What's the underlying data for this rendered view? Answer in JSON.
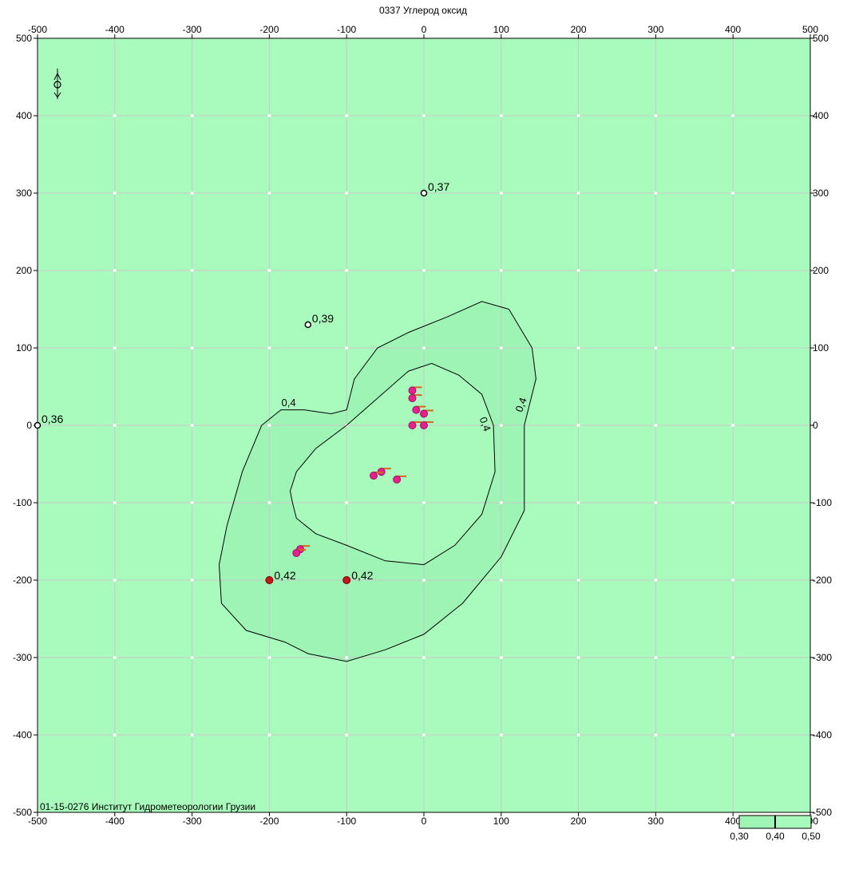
{
  "title": "0337 Углерод оксид",
  "organization": "01-15-0276 Институт Гидрометеорологии Грузии",
  "colors": {
    "background": "#a8fbbd",
    "zone_mid": "#9df4b4",
    "zone_inner": "#a7fabc",
    "grid": "#c8c8c8",
    "frame": "#000000",
    "source_point": "#e8208c",
    "source_flag": "#d06a1a",
    "max_point": "#c01818"
  },
  "axes": {
    "x_ticks": [
      "-500",
      "-400",
      "-300",
      "-200",
      "-100",
      "0",
      "100",
      "200",
      "300",
      "400",
      "500"
    ],
    "y_ticks": [
      "500",
      "400",
      "300",
      "200",
      "100",
      "0",
      "-100",
      "-200",
      "-300",
      "-400",
      "-500"
    ],
    "range": [
      -500,
      500
    ]
  },
  "isoline_label": "0,4",
  "isolines": [
    {
      "name": "outer",
      "level": 0.4,
      "points": [
        [
          -180,
          -280
        ],
        [
          -150,
          -295
        ],
        [
          -100,
          -305
        ],
        [
          -50,
          -290
        ],
        [
          0,
          -270
        ],
        [
          50,
          -230
        ],
        [
          100,
          -170
        ],
        [
          130,
          -110
        ],
        [
          130,
          0
        ],
        [
          145,
          60
        ],
        [
          140,
          100
        ],
        [
          110,
          150
        ],
        [
          75,
          160
        ],
        [
          30,
          140
        ],
        [
          -20,
          120
        ],
        [
          -60,
          100
        ],
        [
          -90,
          60
        ],
        [
          -100,
          20
        ],
        [
          -120,
          15
        ],
        [
          -155,
          20
        ],
        [
          -185,
          20
        ],
        [
          -210,
          0
        ],
        [
          -235,
          -60
        ],
        [
          -255,
          -130
        ],
        [
          -265,
          -180
        ],
        [
          -262,
          -230
        ],
        [
          -230,
          -265
        ]
      ]
    },
    {
      "name": "inner",
      "level": 0.4,
      "points": [
        [
          -170,
          -100
        ],
        [
          -165,
          -120
        ],
        [
          -140,
          -140
        ],
        [
          -100,
          -155
        ],
        [
          -50,
          -175
        ],
        [
          0,
          -180
        ],
        [
          40,
          -155
        ],
        [
          75,
          -115
        ],
        [
          92,
          -60
        ],
        [
          90,
          0
        ],
        [
          75,
          40
        ],
        [
          45,
          65
        ],
        [
          10,
          80
        ],
        [
          -20,
          70
        ],
        [
          -60,
          35
        ],
        [
          -100,
          0
        ],
        [
          -140,
          -30
        ],
        [
          -165,
          -60
        ],
        [
          -173,
          -85
        ]
      ]
    }
  ],
  "iso_labels": [
    {
      "x": -175,
      "y": 25,
      "text": "0,4",
      "rot": 0
    },
    {
      "x": 75,
      "y": 0,
      "text": "0,4",
      "rot": 70
    },
    {
      "x": 130,
      "y": 25,
      "text": "0,4",
      "rot": -70
    }
  ],
  "calc_points": [
    {
      "x": 0,
      "y": 300,
      "label": "0,37"
    },
    {
      "x": -150,
      "y": 130,
      "label": "0,39"
    },
    {
      "x": -500,
      "y": 0,
      "label": "0,36"
    }
  ],
  "max_points": [
    {
      "x": -200,
      "y": -200,
      "label": "0,42"
    },
    {
      "x": -100,
      "y": -200,
      "label": "0,42"
    }
  ],
  "sources": [
    {
      "x": -15,
      "y": 45
    },
    {
      "x": -15,
      "y": 35
    },
    {
      "x": -10,
      "y": 20
    },
    {
      "x": 0,
      "y": 15
    },
    {
      "x": -15,
      "y": 0
    },
    {
      "x": 0,
      "y": 0
    },
    {
      "x": -55,
      "y": -60
    },
    {
      "x": -65,
      "y": -65
    },
    {
      "x": -35,
      "y": -70
    },
    {
      "x": -160,
      "y": -160
    },
    {
      "x": -165,
      "y": -165
    }
  ],
  "legend": {
    "labels": [
      "0,30",
      "0,40",
      "0,50"
    ]
  }
}
